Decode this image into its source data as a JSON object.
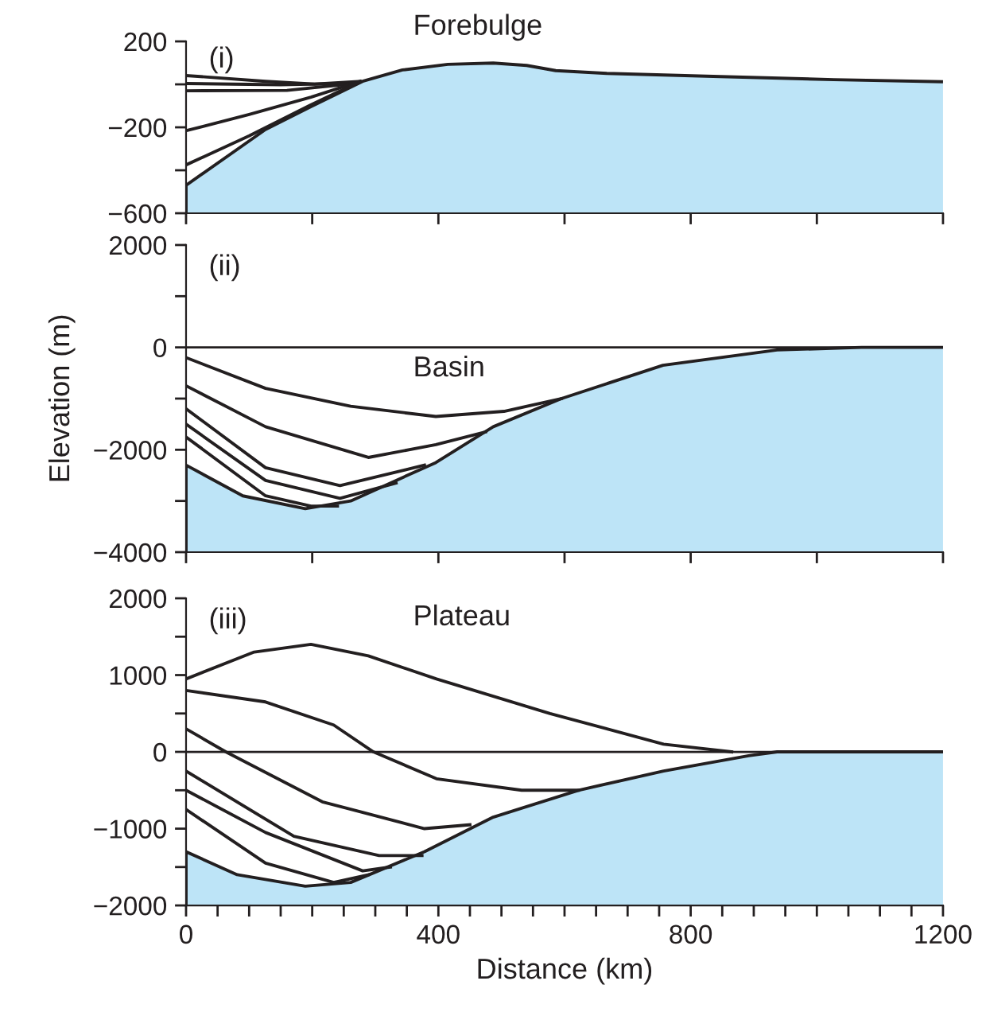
{
  "chart_data": [
    {
      "type": "line",
      "annotations": [
        "(i)",
        "Forebulge"
      ],
      "xlim": [
        0,
        1200
      ],
      "ylim": [
        -600,
        200
      ],
      "xticks": [
        {
          "value": 0,
          "label": null
        },
        {
          "value": 200,
          "label": null
        },
        {
          "value": 400,
          "label": null
        },
        {
          "value": 600,
          "label": null
        },
        {
          "value": 800,
          "label": null
        },
        {
          "value": 1000,
          "label": null
        },
        {
          "value": 1200,
          "label": null
        }
      ],
      "yticks": [
        200,
        {
          "value": 0,
          "label": null
        },
        -200,
        {
          "value": -400,
          "label": null
        },
        -600
      ],
      "tick_labels": "y",
      "grid": false,
      "series": [
        {
          "type": "area",
          "color": "#bde4f7",
          "x": [
            0,
            126,
            198,
            280,
            343,
            415,
            487,
            540,
            586,
            667,
            847,
            1027,
            1200
          ],
          "values": [
            -470,
            -210,
            -104,
            14,
            67,
            93,
            99,
            88,
            64,
            51,
            36,
            22,
            12
          ]
        },
        {
          "color": "#231f20",
          "x": [
            0,
            126,
            204,
            276
          ],
          "values": [
            41,
            14,
            1,
            14
          ]
        },
        {
          "color": "#231f20",
          "x": [
            0,
            150,
            270
          ],
          "values": [
            4,
            -2,
            5
          ]
        },
        {
          "color": "#231f20",
          "x": [
            0,
            160,
            270
          ],
          "values": [
            -30,
            -28,
            5
          ]
        },
        {
          "color": "#231f20",
          "x": [
            0,
            100,
            198,
            276
          ],
          "values": [
            -216,
            -140,
            -60,
            14
          ]
        },
        {
          "color": "#231f20",
          "x": [
            0,
            100,
            198,
            270
          ],
          "values": [
            -375,
            -240,
            -95,
            5
          ]
        }
      ]
    },
    {
      "type": "line",
      "annotations": [
        "(ii)",
        "Basin"
      ],
      "ylabel": "Elevation (m)",
      "xlim": [
        0,
        1200
      ],
      "ylim": [
        -4000,
        2000
      ],
      "xticks": [
        {
          "value": 0,
          "label": null
        },
        {
          "value": 200,
          "label": null
        },
        {
          "value": 400,
          "label": null
        },
        {
          "value": 600,
          "label": null
        },
        {
          "value": 800,
          "label": null
        },
        {
          "value": 1000,
          "label": null
        },
        {
          "value": 1200,
          "label": null
        }
      ],
      "yticks": [
        2000,
        {
          "value": 1000,
          "label": null
        },
        0,
        {
          "value": -1000,
          "label": null
        },
        -2000,
        {
          "value": -3000,
          "label": null
        },
        -4000
      ],
      "tick_labels": "y",
      "grid": false,
      "ref_lines": [
        {
          "axis": "y",
          "value": 0,
          "label": null,
          "color": "#231f20"
        }
      ],
      "series": [
        {
          "type": "area",
          "color": "#bde4f7",
          "x": [
            0,
            90,
            189,
            261,
            396,
            487,
            595,
            756,
            937,
            1071,
            1200
          ],
          "values": [
            -2300,
            -2900,
            -3150,
            -3000,
            -2250,
            -1550,
            -1000,
            -350,
            -50,
            0,
            0
          ]
        },
        {
          "color": "#231f20",
          "x": [
            0,
            126,
            261,
            396,
            504,
            595
          ],
          "values": [
            -200,
            -800,
            -1150,
            -1350,
            -1250,
            -1000
          ]
        },
        {
          "color": "#231f20",
          "x": [
            0,
            126,
            289,
            396,
            475
          ],
          "values": [
            -750,
            -1550,
            -2150,
            -1900,
            -1650
          ]
        },
        {
          "color": "#231f20",
          "x": [
            0,
            126,
            244,
            378
          ],
          "values": [
            -1200,
            -2350,
            -2700,
            -2300
          ]
        },
        {
          "color": "#231f20",
          "x": [
            0,
            126,
            244,
            333
          ],
          "values": [
            -1500,
            -2600,
            -2950,
            -2650
          ]
        },
        {
          "color": "#231f20",
          "x": [
            0,
            126,
            198,
            240
          ],
          "values": [
            -1750,
            -2900,
            -3100,
            -3100
          ]
        }
      ]
    },
    {
      "type": "line",
      "annotations": [
        "(iii)",
        "Plateau"
      ],
      "xlabel": "Distance (km)",
      "xlim": [
        0,
        1200
      ],
      "ylim": [
        -2000,
        2000
      ],
      "xticks": [
        0,
        {
          "value": 50,
          "label": null
        },
        {
          "value": 100,
          "label": null
        },
        {
          "value": 150,
          "label": null
        },
        {
          "value": 200,
          "label": null
        },
        {
          "value": 250,
          "label": null
        },
        {
          "value": 300,
          "label": null
        },
        {
          "value": 350,
          "label": null
        },
        400,
        {
          "value": 450,
          "label": null
        },
        {
          "value": 500,
          "label": null
        },
        {
          "value": 550,
          "label": null
        },
        {
          "value": 600,
          "label": null
        },
        {
          "value": 650,
          "label": null
        },
        {
          "value": 700,
          "label": null
        },
        {
          "value": 750,
          "label": null
        },
        800,
        {
          "value": 850,
          "label": null
        },
        {
          "value": 900,
          "label": null
        },
        {
          "value": 950,
          "label": null
        },
        {
          "value": 1000,
          "label": null
        },
        {
          "value": 1050,
          "label": null
        },
        {
          "value": 1100,
          "label": null
        },
        {
          "value": 1150,
          "label": null
        },
        1200
      ],
      "yticks": [
        2000,
        {
          "value": 1500,
          "label": null
        },
        1000,
        {
          "value": 500,
          "label": null
        },
        0,
        {
          "value": -500,
          "label": null
        },
        -1000,
        {
          "value": -1500,
          "label": null
        },
        -2000
      ],
      "grid": false,
      "ref_lines": [
        {
          "axis": "y",
          "value": 0,
          "label": null,
          "color": "#231f20"
        }
      ],
      "series": [
        {
          "type": "area",
          "color": "#bde4f7",
          "x": [
            0,
            81,
            189,
            261,
            378,
            487,
            622,
            757,
            892,
            937,
            1200
          ],
          "values": [
            -1300,
            -1600,
            -1750,
            -1700,
            -1300,
            -850,
            -500,
            -250,
            -50,
            0,
            0
          ]
        },
        {
          "color": "#231f20",
          "x": [
            0,
            108,
            198,
            289,
            397,
            577,
            757,
            865
          ],
          "values": [
            950,
            1300,
            1400,
            1250,
            950,
            500,
            100,
            0
          ]
        },
        {
          "color": "#231f20",
          "x": [
            0,
            126,
            234,
            297,
            397,
            532,
            622
          ],
          "values": [
            800,
            650,
            350,
            0,
            -350,
            -500,
            -500
          ]
        },
        {
          "color": "#231f20",
          "x": [
            0,
            63,
            216,
            378,
            450
          ],
          "values": [
            300,
            0,
            -650,
            -1000,
            -950
          ]
        },
        {
          "color": "#231f20",
          "x": [
            0,
            171,
            306,
            374
          ],
          "values": [
            -250,
            -1100,
            -1350,
            -1350
          ]
        },
        {
          "color": "#231f20",
          "x": [
            0,
            126,
            280,
            324
          ],
          "values": [
            -500,
            -1050,
            -1550,
            -1500
          ]
        },
        {
          "color": "#231f20",
          "x": [
            0,
            126,
            234,
            289
          ],
          "values": [
            -750,
            -1450,
            -1700,
            -1600
          ]
        }
      ]
    }
  ]
}
